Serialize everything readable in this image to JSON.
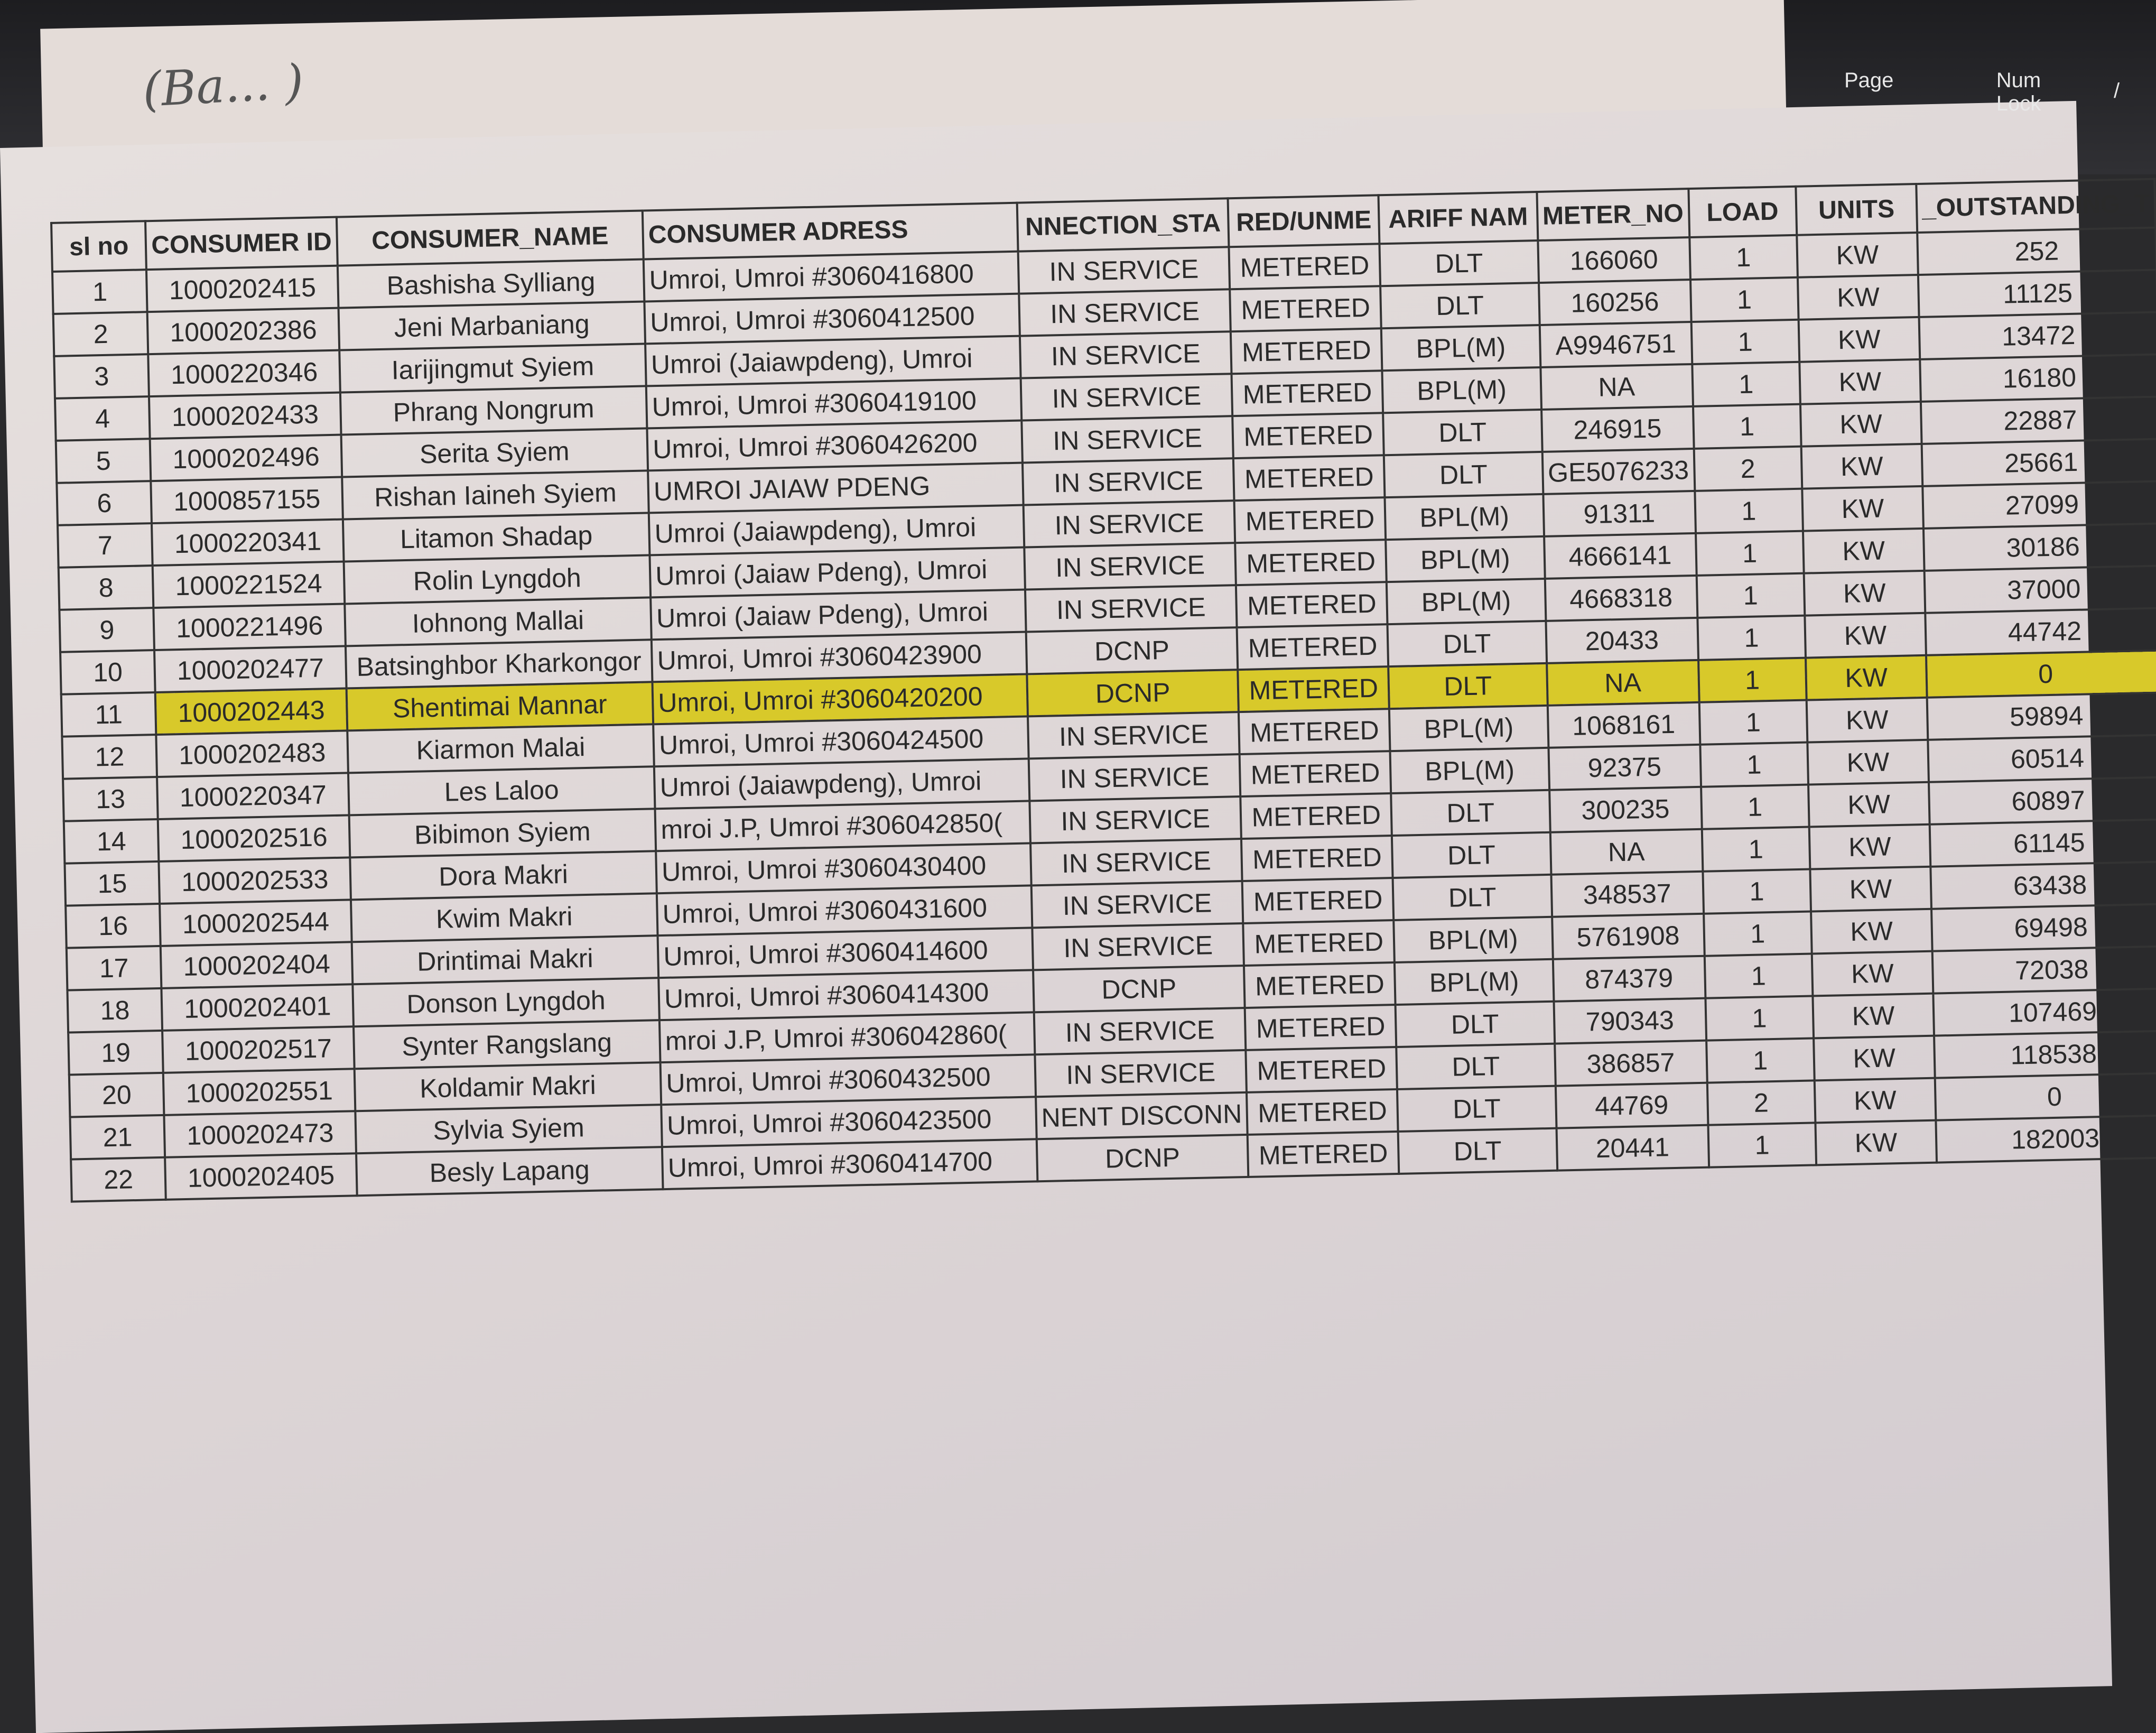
{
  "keyboard": {
    "keys": [
      "Page",
      "Num Lock",
      "/"
    ]
  },
  "handwriting": "(Ba... )",
  "table": {
    "headers": [
      "sl no",
      "CONSUMER ID",
      "CONSUMER_NAME",
      "CONSUMER ADRESS",
      "NNECTION_STA",
      "RED/UNME",
      "ARIFF NAM",
      "METER_NO",
      "LOAD",
      "UNITS",
      "_OUTSTANDING_T"
    ],
    "highlight_color": "#d8c92a",
    "highlighted_row": 11,
    "rows": [
      [
        "1",
        "1000202415",
        "Bashisha Sylliang",
        "Umroi, Umroi #3060416800",
        "IN SERVICE",
        "METERED",
        "DLT",
        "166060",
        "1",
        "KW",
        "252"
      ],
      [
        "2",
        "1000202386",
        "Jeni Marbaniang",
        "Umroi, Umroi #3060412500",
        "IN SERVICE",
        "METERED",
        "DLT",
        "160256",
        "1",
        "KW",
        "11125"
      ],
      [
        "3",
        "1000220346",
        "Iarijingmut Syiem",
        "Umroi (Jaiawpdeng), Umroi",
        "IN SERVICE",
        "METERED",
        "BPL(M)",
        "A9946751",
        "1",
        "KW",
        "13472"
      ],
      [
        "4",
        "1000202433",
        "Phrang Nongrum",
        "Umroi, Umroi #3060419100",
        "IN SERVICE",
        "METERED",
        "BPL(M)",
        "NA",
        "1",
        "KW",
        "16180"
      ],
      [
        "5",
        "1000202496",
        "Serita Syiem",
        "Umroi, Umroi #3060426200",
        "IN SERVICE",
        "METERED",
        "DLT",
        "246915",
        "1",
        "KW",
        "22887"
      ],
      [
        "6",
        "1000857155",
        "Rishan Iaineh Syiem",
        "UMROI JAIAW PDENG",
        "IN SERVICE",
        "METERED",
        "DLT",
        "GE5076233",
        "2",
        "KW",
        "25661"
      ],
      [
        "7",
        "1000220341",
        "Litamon Shadap",
        "Umroi (Jaiawpdeng), Umroi",
        "IN SERVICE",
        "METERED",
        "BPL(M)",
        "91311",
        "1",
        "KW",
        "27099"
      ],
      [
        "8",
        "1000221524",
        "Rolin Lyngdoh",
        "Umroi (Jaiaw Pdeng), Umroi",
        "IN SERVICE",
        "METERED",
        "BPL(M)",
        "4666141",
        "1",
        "KW",
        "30186"
      ],
      [
        "9",
        "1000221496",
        "Iohnong Mallai",
        "Umroi (Jaiaw Pdeng), Umroi",
        "IN SERVICE",
        "METERED",
        "BPL(M)",
        "4668318",
        "1",
        "KW",
        "37000"
      ],
      [
        "10",
        "1000202477",
        "Batsinghbor Kharkongor",
        "Umroi, Umroi #3060423900",
        "DCNP",
        "METERED",
        "DLT",
        "20433",
        "1",
        "KW",
        "44742"
      ],
      [
        "11",
        "1000202443",
        "Shentimai Mannar",
        "Umroi, Umroi #3060420200",
        "DCNP",
        "METERED",
        "DLT",
        "NA",
        "1",
        "KW",
        "0"
      ],
      [
        "12",
        "1000202483",
        "Kiarmon Malai",
        "Umroi, Umroi #3060424500",
        "IN SERVICE",
        "METERED",
        "BPL(M)",
        "1068161",
        "1",
        "KW",
        "59894"
      ],
      [
        "13",
        "1000220347",
        "Les Laloo",
        "Umroi (Jaiawpdeng), Umroi",
        "IN SERVICE",
        "METERED",
        "BPL(M)",
        "92375",
        "1",
        "KW",
        "60514"
      ],
      [
        "14",
        "1000202516",
        "Bibimon Syiem",
        "mroi J.P, Umroi #306042850(",
        "IN SERVICE",
        "METERED",
        "DLT",
        "300235",
        "1",
        "KW",
        "60897"
      ],
      [
        "15",
        "1000202533",
        "Dora Makri",
        "Umroi, Umroi #3060430400",
        "IN SERVICE",
        "METERED",
        "DLT",
        "NA",
        "1",
        "KW",
        "61145"
      ],
      [
        "16",
        "1000202544",
        "Kwim Makri",
        "Umroi, Umroi #3060431600",
        "IN SERVICE",
        "METERED",
        "DLT",
        "348537",
        "1",
        "KW",
        "63438"
      ],
      [
        "17",
        "1000202404",
        "Drintimai Makri",
        "Umroi, Umroi #3060414600",
        "IN SERVICE",
        "METERED",
        "BPL(M)",
        "5761908",
        "1",
        "KW",
        "69498"
      ],
      [
        "18",
        "1000202401",
        "Donson Lyngdoh",
        "Umroi, Umroi #3060414300",
        "DCNP",
        "METERED",
        "BPL(M)",
        "874379",
        "1",
        "KW",
        "72038"
      ],
      [
        "19",
        "1000202517",
        "Synter Rangslang",
        "mroi J.P, Umroi #306042860(",
        "IN SERVICE",
        "METERED",
        "DLT",
        "790343",
        "1",
        "KW",
        "107469"
      ],
      [
        "20",
        "1000202551",
        "Koldamir Makri",
        "Umroi, Umroi #3060432500",
        "IN SERVICE",
        "METERED",
        "DLT",
        "386857",
        "1",
        "KW",
        "118538"
      ],
      [
        "21",
        "1000202473",
        "Sylvia Syiem",
        "Umroi, Umroi #3060423500",
        "NENT DISCONN",
        "METERED",
        "DLT",
        "44769",
        "2",
        "KW",
        "0"
      ],
      [
        "22",
        "1000202405",
        "Besly Lapang",
        "Umroi, Umroi #3060414700",
        "DCNP",
        "METERED",
        "DLT",
        "20441",
        "1",
        "KW",
        "182003"
      ]
    ]
  }
}
